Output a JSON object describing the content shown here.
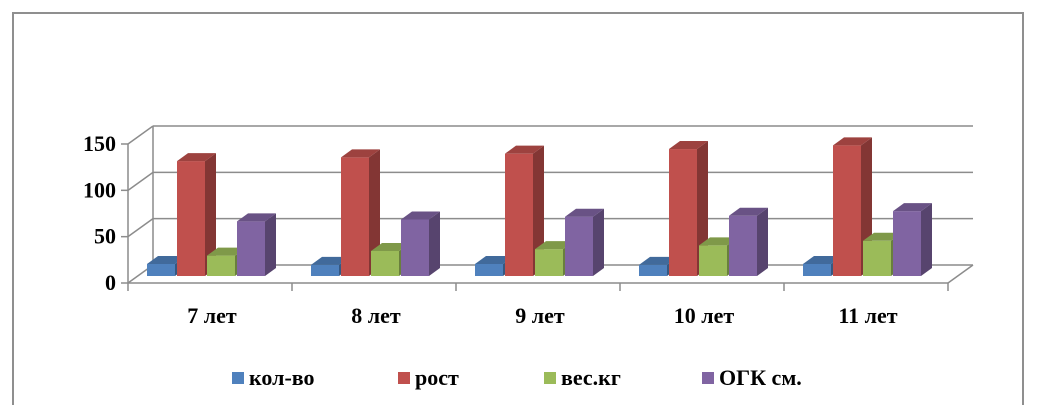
{
  "chart_data": {
    "type": "bar",
    "title": "",
    "xlabel": "",
    "ylabel": "",
    "categories": [
      "7 лет",
      "8 лет",
      "9 лет",
      "10 лет",
      "11 лет"
    ],
    "series": [
      {
        "name": "кол-во",
        "values": [
          13,
          12,
          13,
          12,
          13
        ],
        "color": "#4f81bd"
      },
      {
        "name": "рост",
        "values": [
          124,
          128,
          132,
          137,
          141
        ],
        "color": "#c0504d"
      },
      {
        "name": "вес.кг",
        "values": [
          22,
          27,
          29,
          33,
          38
        ],
        "color": "#9bbb59"
      },
      {
        "name": "ОГК см.",
        "values": [
          59,
          61,
          64,
          65,
          70
        ],
        "color": "#8064a2"
      }
    ],
    "yticks": [
      "0",
      "50",
      "100",
      "150"
    ],
    "ylim": [
      0,
      150
    ],
    "grid": true,
    "legend_position": "bottom"
  }
}
